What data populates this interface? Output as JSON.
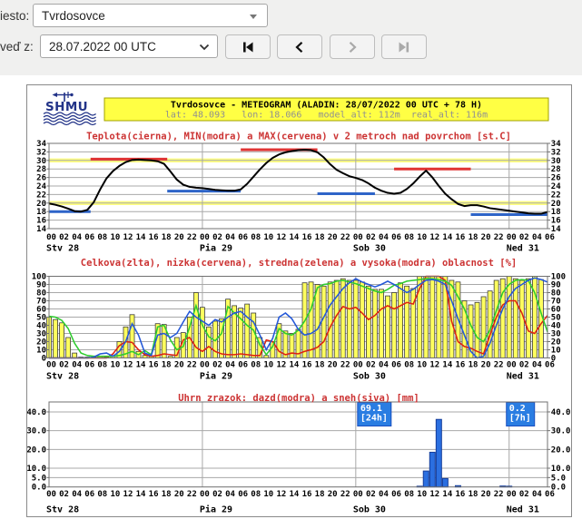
{
  "controls": {
    "location_label": "iesto:",
    "location_value": "Tvrdosovce",
    "run_label": "veď z:",
    "run_value": "28.07.2022 00 UTC"
  },
  "header": {
    "logo": "SHMU",
    "title": "Tvrdosovce - METEOGRAM (ALADIN: 28/07/2022 00 UTC + 78 H)",
    "subtitle": "lat: 48.093   lon: 18.066   model_alt: 112m  real_alt: 116m",
    "banner_bg": "#ffff44",
    "banner_border": "#a0a000"
  },
  "axis": {
    "hours_total": 78,
    "tick_step": 2,
    "day_labels": [
      {
        "label": "Stv 28",
        "hour": 0
      },
      {
        "label": "Pia 29",
        "hour": 24
      },
      {
        "label": "Sob 30",
        "hour": 48
      },
      {
        "label": "Ned 31",
        "hour": 72
      }
    ]
  },
  "chart_data": [
    {
      "type": "line",
      "title": "Teplota(cierna), MIN(modra) a MAX(cervena) v 2 metroch nad povrchom [st.C]",
      "title_color": "#cc3333",
      "ylabel": "st.C",
      "ylim": [
        14,
        34
      ],
      "yticks": [
        14,
        16,
        18,
        20,
        22,
        24,
        26,
        28,
        30,
        32,
        34
      ],
      "yellow_lines": [
        20,
        30
      ],
      "line_color": "#000000",
      "max_color": "#e03333",
      "min_color": "#2e64c8",
      "temperature": [
        19.9,
        19.6,
        19.2,
        18.7,
        18.1,
        18.0,
        18.4,
        20.2,
        23.2,
        25.8,
        27.5,
        28.7,
        29.6,
        30.1,
        30.2,
        30.1,
        30.0,
        29.8,
        29.2,
        27.4,
        25.5,
        24.3,
        23.8,
        23.6,
        23.5,
        23.3,
        23.1,
        23.0,
        22.9,
        22.9,
        23.2,
        24.5,
        26.2,
        27.9,
        29.4,
        30.6,
        31.4,
        31.9,
        32.2,
        32.4,
        32.5,
        32.4,
        31.9,
        30.7,
        29.1,
        27.8,
        27.0,
        26.3,
        25.9,
        25.4,
        24.6,
        23.6,
        22.9,
        22.4,
        22.2,
        22.4,
        23.3,
        24.6,
        26.2,
        27.6,
        26.0,
        24.0,
        22.2,
        20.9,
        19.8,
        19.3,
        19.5,
        19.5,
        19.2,
        18.8,
        18.6,
        18.4,
        18.2,
        18.0,
        17.8,
        17.6,
        17.5,
        17.5,
        17.9
      ],
      "max_segments": [
        {
          "from": 6.5,
          "to": 18.5,
          "value": 30.3
        },
        {
          "from": 30,
          "to": 42,
          "value": 32.5
        },
        {
          "from": 54,
          "to": 66,
          "value": 28.0
        }
      ],
      "min_segments": [
        {
          "from": 0,
          "to": 6.5,
          "value": 18.0
        },
        {
          "from": 18.5,
          "to": 30,
          "value": 22.8
        },
        {
          "from": 42,
          "to": 51,
          "value": 22.2
        },
        {
          "from": 66,
          "to": 78,
          "value": 17.3
        }
      ]
    },
    {
      "type": "bar+line",
      "title": "Celkova(zlta), nizka(cervena), stredna(zelena) a vysoka(modra) oblacnost [%]",
      "title_color": "#cc3333",
      "ylabel": "%",
      "ylim": [
        0,
        100
      ],
      "yticks": [
        0,
        10,
        20,
        30,
        40,
        50,
        60,
        70,
        80,
        90,
        100
      ],
      "bar_color": "#ffff5e",
      "bar_edge": "#3a3a3a",
      "total_bars": [
        50,
        47,
        43,
        25,
        6,
        1,
        1,
        1,
        2,
        1,
        3,
        20,
        38,
        53,
        8,
        3,
        2,
        42,
        41,
        2,
        25,
        31,
        50,
        80,
        62,
        38,
        45,
        48,
        72,
        64,
        61,
        66,
        55,
        25,
        3,
        20,
        42,
        33,
        30,
        35,
        92,
        93,
        90,
        88,
        93,
        95,
        97,
        95,
        95,
        93,
        88,
        84,
        84,
        76,
        80,
        92,
        88,
        85,
        100,
        100,
        100,
        100,
        100,
        95,
        93,
        70,
        65,
        68,
        75,
        82,
        95,
        97,
        100,
        97,
        95,
        97,
        100,
        96
      ],
      "series": [
        {
          "name": "nizka",
          "color": "#dd2211",
          "values": [
            0,
            0,
            0,
            0,
            0,
            0,
            0,
            0,
            0,
            0,
            5,
            15,
            20,
            19,
            10,
            4,
            2,
            3,
            5,
            4,
            3,
            22,
            25,
            13,
            8,
            14,
            8,
            5,
            4,
            4,
            5,
            4,
            3,
            3,
            22,
            20,
            8,
            4,
            6,
            5,
            8,
            10,
            13,
            20,
            38,
            52,
            63,
            60,
            62,
            55,
            47,
            52,
            60,
            64,
            60,
            64,
            68,
            66,
            85,
            100,
            100,
            100,
            95,
            45,
            20,
            14,
            12,
            8,
            5,
            28,
            50,
            65,
            70,
            70,
            55,
            33,
            30,
            42,
            52
          ]
        },
        {
          "name": "stredna",
          "color": "#2ecc2e",
          "values": [
            51,
            50,
            46,
            36,
            18,
            6,
            3,
            2,
            2,
            2,
            2,
            3,
            5,
            8,
            4,
            9,
            4,
            38,
            40,
            22,
            10,
            14,
            38,
            64,
            40,
            26,
            21,
            30,
            63,
            55,
            48,
            40,
            34,
            16,
            4,
            14,
            36,
            30,
            28,
            34,
            45,
            60,
            86,
            90,
            91,
            94,
            95,
            93,
            91,
            88,
            85,
            82,
            80,
            84,
            89,
            91,
            94,
            95,
            96,
            97,
            97,
            96,
            94,
            89,
            75,
            60,
            40,
            25,
            20,
            34,
            58,
            80,
            90,
            95,
            96,
            95,
            80,
            55,
            32
          ]
        },
        {
          "name": "vysoka",
          "color": "#2458d8",
          "values": [
            0,
            0,
            0,
            0,
            0,
            0,
            0,
            1,
            5,
            6,
            2,
            8,
            20,
            42,
            28,
            6,
            3,
            28,
            30,
            25,
            30,
            44,
            57,
            50,
            45,
            40,
            47,
            44,
            50,
            55,
            57,
            50,
            44,
            28,
            10,
            24,
            50,
            55,
            48,
            35,
            28,
            30,
            35,
            50,
            65,
            75,
            85,
            92,
            97,
            93,
            90,
            87,
            90,
            94,
            90,
            85,
            80,
            84,
            90,
            95,
            96,
            94,
            90,
            70,
            48,
            28,
            8,
            0,
            2,
            18,
            40,
            60,
            75,
            85,
            90,
            95,
            98,
            96,
            93
          ]
        }
      ]
    },
    {
      "type": "bar",
      "title": "Uhrn zrazok: dazd(modra) a sneh(siva) [mm]",
      "title_color": "#cc3333",
      "ylabel": "mm",
      "ylim": [
        0,
        45.3
      ],
      "yticks": [
        {
          "v": 0,
          "label": "0.0"
        },
        {
          "v": 5,
          "label": "5.0"
        },
        {
          "v": 10,
          "label": "10.0"
        },
        {
          "v": 20,
          "label": "20.0"
        },
        {
          "v": 30,
          "label": "30.0"
        },
        {
          "v": 40,
          "label": "40.0"
        }
      ],
      "bar_color": "#2b6fe0",
      "bar_edge": "#143c99",
      "rain_bars": [
        {
          "hour": 58,
          "value": 0.4
        },
        {
          "hour": 59,
          "value": 8.5
        },
        {
          "hour": 60,
          "value": 18.5
        },
        {
          "hour": 61,
          "value": 36.0
        },
        {
          "hour": 62,
          "value": 4.5
        },
        {
          "hour": 64,
          "value": 0.7
        },
        {
          "hour": 71,
          "value": 0.5
        },
        {
          "hour": 72,
          "value": 0.4
        }
      ],
      "annotations": [
        {
          "value": "69.1",
          "period": "[24h]",
          "hour": 48
        },
        {
          "value": "0.2",
          "period": "[7h]",
          "hour": 72
        }
      ],
      "annotation_bg": "#2a7de2",
      "annotation_border": "#1a4fc0"
    }
  ]
}
